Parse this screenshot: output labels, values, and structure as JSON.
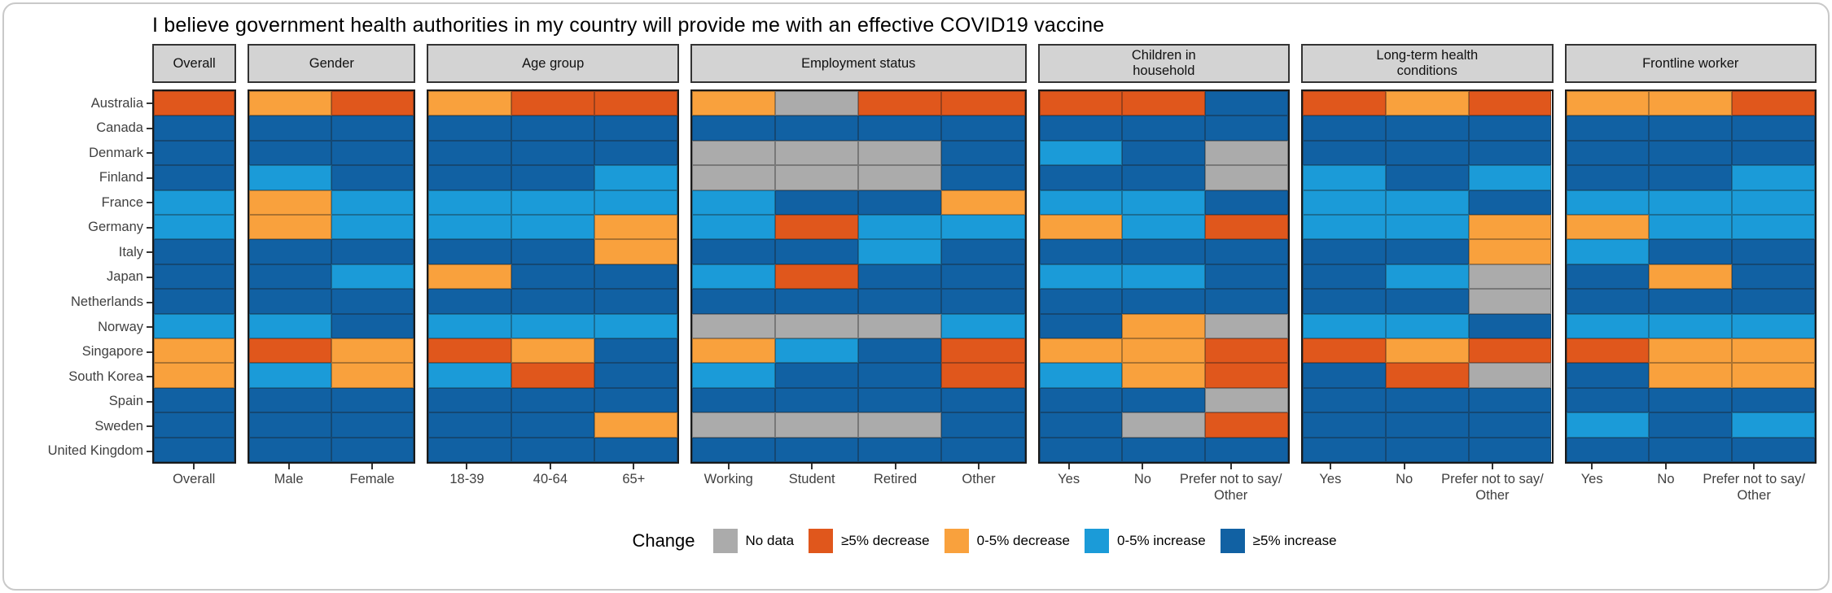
{
  "title": "I believe government health authorities in my country will provide me with an effective COVID19 vaccine",
  "legend": {
    "label": "Change",
    "items": [
      {
        "code": "N",
        "label": "No data",
        "color": "#ABABAB"
      },
      {
        "code": "D5",
        "label": "≥5% decrease",
        "color": "#E0571C"
      },
      {
        "code": "D0",
        "label": "0-5% decrease",
        "color": "#F9A13D"
      },
      {
        "code": "I0",
        "label": "0-5% increase",
        "color": "#1B9BD8"
      },
      {
        "code": "I5",
        "label": "≥5% increase",
        "color": "#1161A3"
      }
    ]
  },
  "chart_data": {
    "type": "heatmap",
    "value_legend": {
      "N": "No data",
      "D5": ">=5% decrease",
      "D0": "0-5% decrease",
      "I0": "0-5% increase",
      "I5": ">=5% increase"
    },
    "rows": [
      "Australia",
      "Canada",
      "Denmark",
      "Finland",
      "France",
      "Germany",
      "Italy",
      "Japan",
      "Netherlands",
      "Norway",
      "Singapore",
      "South Korea",
      "Spain",
      "Sweden",
      "United Kingdom"
    ],
    "panels": [
      {
        "label": "Overall",
        "columns": [
          "Overall"
        ],
        "cells": [
          [
            "D5"
          ],
          [
            "I5"
          ],
          [
            "I5"
          ],
          [
            "I5"
          ],
          [
            "I0"
          ],
          [
            "I0"
          ],
          [
            "I5"
          ],
          [
            "I5"
          ],
          [
            "I5"
          ],
          [
            "I0"
          ],
          [
            "D0"
          ],
          [
            "D0"
          ],
          [
            "I5"
          ],
          [
            "I5"
          ],
          [
            "I5"
          ]
        ]
      },
      {
        "label": "Gender",
        "columns": [
          "Male",
          "Female"
        ],
        "cells": [
          [
            "D0",
            "D5"
          ],
          [
            "I5",
            "I5"
          ],
          [
            "I5",
            "I5"
          ],
          [
            "I0",
            "I5"
          ],
          [
            "D0",
            "I0"
          ],
          [
            "D0",
            "I0"
          ],
          [
            "I5",
            "I5"
          ],
          [
            "I5",
            "I0"
          ],
          [
            "I5",
            "I5"
          ],
          [
            "I0",
            "I5"
          ],
          [
            "D5",
            "D0"
          ],
          [
            "I0",
            "D0"
          ],
          [
            "I5",
            "I5"
          ],
          [
            "I5",
            "I5"
          ],
          [
            "I5",
            "I5"
          ]
        ]
      },
      {
        "label": "Age group",
        "columns": [
          "18-39",
          "40-64",
          "65+"
        ],
        "cells": [
          [
            "D0",
            "D5",
            "D5"
          ],
          [
            "I5",
            "I5",
            "I5"
          ],
          [
            "I5",
            "I5",
            "I5"
          ],
          [
            "I5",
            "I5",
            "I0"
          ],
          [
            "I0",
            "I0",
            "I0"
          ],
          [
            "I0",
            "I0",
            "D0"
          ],
          [
            "I5",
            "I5",
            "D0"
          ],
          [
            "D0",
            "I5",
            "I5"
          ],
          [
            "I5",
            "I5",
            "I5"
          ],
          [
            "I0",
            "I0",
            "I0"
          ],
          [
            "D5",
            "D0",
            "I5"
          ],
          [
            "I0",
            "D5",
            "I5"
          ],
          [
            "I5",
            "I5",
            "I5"
          ],
          [
            "I5",
            "I5",
            "D0"
          ],
          [
            "I5",
            "I5",
            "I5"
          ]
        ]
      },
      {
        "label": "Employment status",
        "columns": [
          "Working",
          "Student",
          "Retired",
          "Other"
        ],
        "cells": [
          [
            "D0",
            "N",
            "D5",
            "D5"
          ],
          [
            "I5",
            "I5",
            "I5",
            "I5"
          ],
          [
            "N",
            "N",
            "N",
            "I5"
          ],
          [
            "N",
            "N",
            "N",
            "I5"
          ],
          [
            "I0",
            "I5",
            "I5",
            "D0"
          ],
          [
            "I0",
            "D5",
            "I0",
            "I0"
          ],
          [
            "I5",
            "I5",
            "I0",
            "I5"
          ],
          [
            "I0",
            "D5",
            "I5",
            "I5"
          ],
          [
            "I5",
            "I5",
            "I5",
            "I5"
          ],
          [
            "N",
            "N",
            "N",
            "I0"
          ],
          [
            "D0",
            "I0",
            "I5",
            "D5"
          ],
          [
            "I0",
            "I5",
            "I5",
            "D5"
          ],
          [
            "I5",
            "I5",
            "I5",
            "I5"
          ],
          [
            "N",
            "N",
            "N",
            "I5"
          ],
          [
            "I5",
            "I5",
            "I5",
            "I5"
          ]
        ]
      },
      {
        "label": "Children in\nhousehold",
        "columns": [
          "Yes",
          "No",
          "Prefer not to say/\nOther"
        ],
        "cells": [
          [
            "D5",
            "D5",
            "I5"
          ],
          [
            "I5",
            "I5",
            "I5"
          ],
          [
            "I0",
            "I5",
            "N"
          ],
          [
            "I5",
            "I5",
            "N"
          ],
          [
            "I0",
            "I0",
            "I5"
          ],
          [
            "D0",
            "I0",
            "D5"
          ],
          [
            "I5",
            "I5",
            "I5"
          ],
          [
            "I0",
            "I0",
            "I5"
          ],
          [
            "I5",
            "I5",
            "I5"
          ],
          [
            "I5",
            "D0",
            "N"
          ],
          [
            "D0",
            "D0",
            "D5"
          ],
          [
            "I0",
            "D0",
            "D5"
          ],
          [
            "I5",
            "I5",
            "N"
          ],
          [
            "I5",
            "N",
            "D5"
          ],
          [
            "I5",
            "I5",
            "I5"
          ]
        ]
      },
      {
        "label": "Long-term health\nconditions",
        "columns": [
          "Yes",
          "No",
          "Prefer not to say/\nOther"
        ],
        "cells": [
          [
            "D5",
            "D0",
            "D5"
          ],
          [
            "I5",
            "I5",
            "I5"
          ],
          [
            "I5",
            "I5",
            "I5"
          ],
          [
            "I0",
            "I5",
            "I0"
          ],
          [
            "I0",
            "I0",
            "I5"
          ],
          [
            "I0",
            "I0",
            "D0"
          ],
          [
            "I5",
            "I5",
            "D0"
          ],
          [
            "I5",
            "I0",
            "N"
          ],
          [
            "I5",
            "I5",
            "N"
          ],
          [
            "I0",
            "I0",
            "I5"
          ],
          [
            "D5",
            "D0",
            "D5"
          ],
          [
            "I5",
            "D5",
            "N"
          ],
          [
            "I5",
            "I5",
            "I5"
          ],
          [
            "I5",
            "I5",
            "I5"
          ],
          [
            "I5",
            "I5",
            "I5"
          ]
        ]
      },
      {
        "label": "Frontline worker",
        "columns": [
          "Yes",
          "No",
          "Prefer not to say/\nOther"
        ],
        "cells": [
          [
            "D0",
            "D0",
            "D5"
          ],
          [
            "I5",
            "I5",
            "I5"
          ],
          [
            "I5",
            "I5",
            "I5"
          ],
          [
            "I5",
            "I5",
            "I0"
          ],
          [
            "I0",
            "I0",
            "I0"
          ],
          [
            "D0",
            "I0",
            "I0"
          ],
          [
            "I0",
            "I5",
            "I5"
          ],
          [
            "I5",
            "D0",
            "I5"
          ],
          [
            "I5",
            "I5",
            "I5"
          ],
          [
            "I0",
            "I0",
            "I0"
          ],
          [
            "D5",
            "D0",
            "D0"
          ],
          [
            "I5",
            "D0",
            "D0"
          ],
          [
            "I5",
            "I5",
            "I5"
          ],
          [
            "I0",
            "I5",
            "I0"
          ],
          [
            "I5",
            "I5",
            "I5"
          ]
        ]
      }
    ]
  }
}
